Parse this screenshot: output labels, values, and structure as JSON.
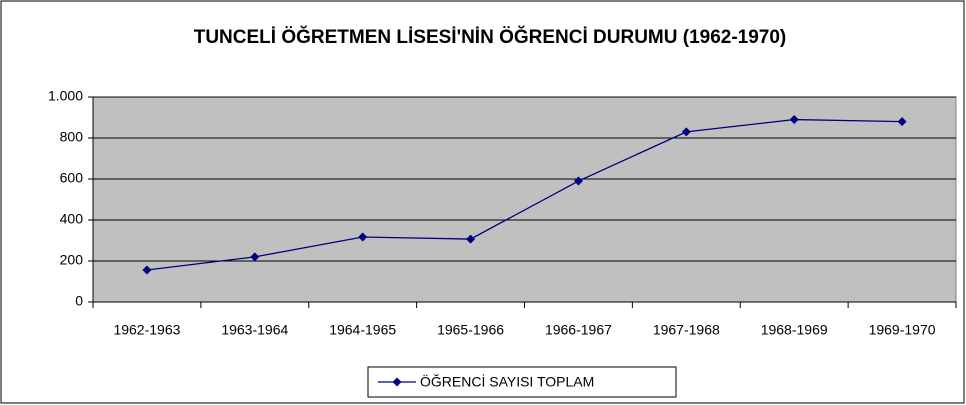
{
  "chart_data": {
    "type": "line",
    "title": "TUNCELİ ÖĞRETMEN LİSESİ'NİN ÖĞRENCİ DURUMU (1962-1970)",
    "categories": [
      "1962-1963",
      "1963-1964",
      "1964-1965",
      "1965-1966",
      "1966-1967",
      "1967-1968",
      "1968-1969",
      "1969-1970"
    ],
    "series": [
      {
        "name": "ÖĞRENCİ SAYISI TOPLAM",
        "color": "#000080",
        "values": [
          156,
          220,
          317,
          307,
          590,
          830,
          890,
          880
        ]
      }
    ],
    "ylim": [
      0,
      1000
    ],
    "yticks": [
      0,
      200,
      400,
      600,
      800,
      {
        "value": 1000,
        "label": "1.000"
      }
    ],
    "grid": true,
    "legend": "bottom"
  }
}
